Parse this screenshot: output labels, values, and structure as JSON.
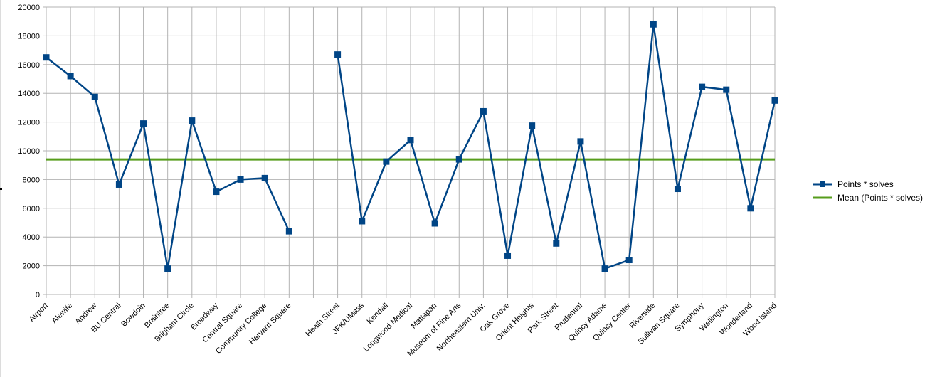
{
  "chart_data": {
    "type": "line",
    "categories": [
      "Airport",
      "Alewife",
      "Andrew",
      "BU Central",
      "Bowdoin",
      "Braintree",
      "Brigham Circle",
      "Broadway",
      "Central Square",
      "Community College",
      "Harvard Square",
      "",
      "Heath Street",
      "JFK/UMass",
      "Kendall",
      "Longwood Medical",
      "Mattapan",
      "Museum of Fine Arts",
      "Northeastern Univ.",
      "Oak Grove",
      "Orient Heights",
      "Park Street",
      "Prudential",
      "Quincy Adams",
      "Quincy Center",
      "Riverside",
      "Sullivan Square",
      "Symphony",
      "Wellington",
      "Wonderland",
      "Wood Island"
    ],
    "series": [
      {
        "name": "Points * solves",
        "color": "#004586",
        "values": [
          16500,
          15200,
          13750,
          7650,
          11900,
          1800,
          12100,
          7150,
          8000,
          8100,
          4400,
          null,
          16700,
          5100,
          9250,
          10750,
          4950,
          9400,
          12750,
          2700,
          11750,
          3550,
          10650,
          1800,
          2400,
          18800,
          7350,
          14450,
          14250,
          6000,
          13500
        ]
      },
      {
        "name": "Mean (Points * solves)",
        "color": "#579d1c",
        "constant": 9400
      }
    ],
    "ylim": [
      0,
      20000
    ],
    "yticks": [
      0,
      2000,
      4000,
      6000,
      8000,
      10000,
      12000,
      14000,
      16000,
      18000,
      20000
    ],
    "grid": true,
    "legend": "right"
  }
}
